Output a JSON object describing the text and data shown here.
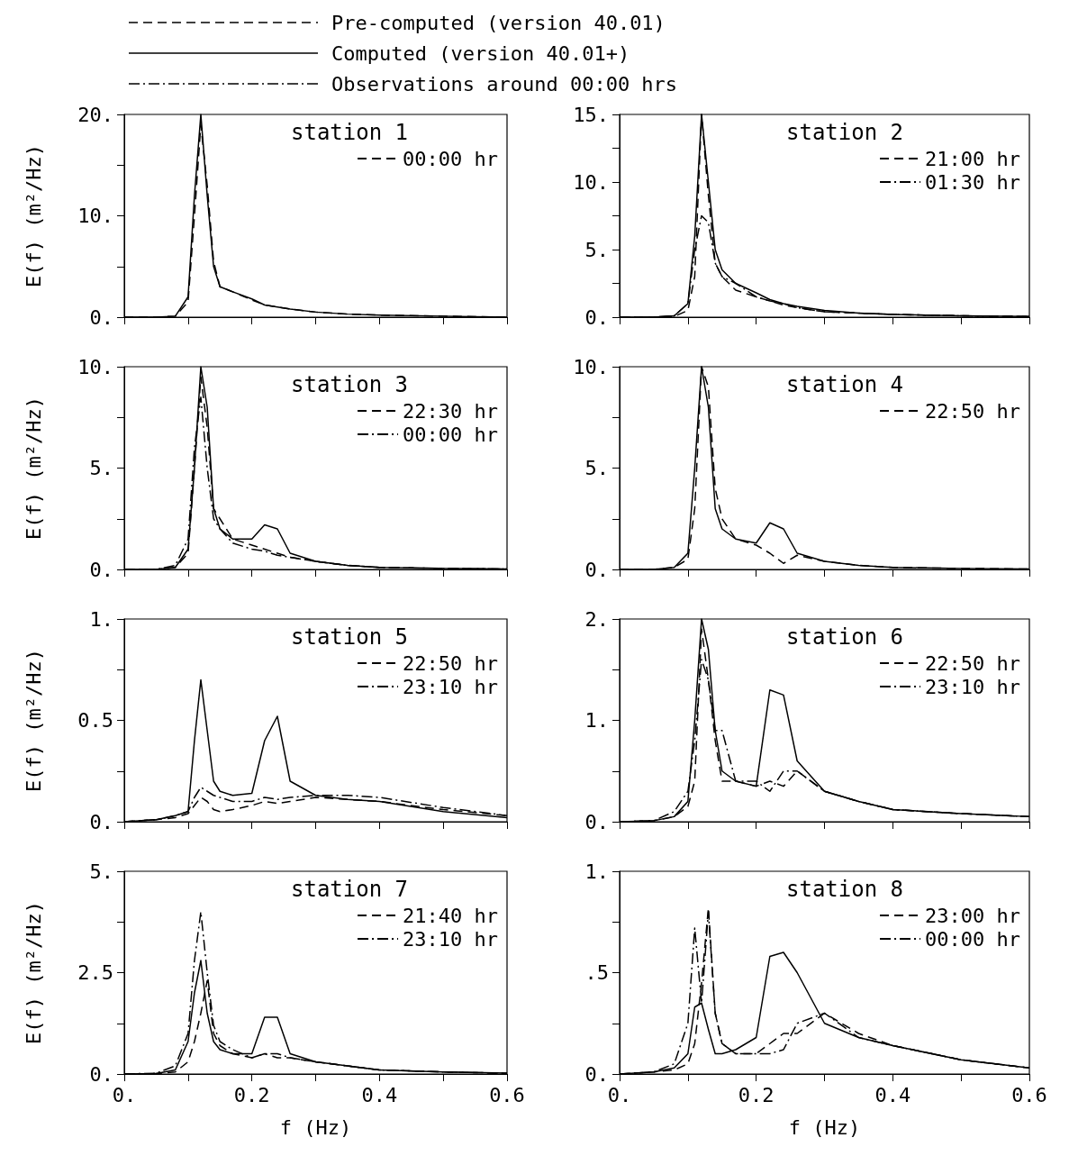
{
  "chart_data": [
    {
      "type": "other",
      "series": [
        {
          "name": "Pre-computed (version 40.01)",
          "color": "#000000",
          "line_style": "dashed"
        },
        {
          "name": "Computed (version 40.01+)",
          "color": "#000000",
          "line_style": "solid"
        },
        {
          "name": "Observations around 00:00 hrs",
          "color": "#000000",
          "line_style": "dashdot"
        }
      ]
    },
    {
      "type": "line",
      "title": "station 1",
      "ylabel": "E(f) (m²/Hz)",
      "tick_labels": "y",
      "legend": "top right",
      "xlim": [
        0,
        0.6
      ],
      "xticks": [
        {
          "value": 0,
          "label": null
        },
        {
          "value": 0.1,
          "label": null
        },
        {
          "value": 0.2,
          "label": null
        },
        {
          "value": 0.3,
          "label": null
        },
        {
          "value": 0.4,
          "label": null
        },
        {
          "value": 0.5,
          "label": null
        },
        {
          "value": 0.6,
          "label": null
        }
      ],
      "ylim": [
        0,
        20
      ],
      "yticks": [
        {
          "value": 0,
          "label": "0."
        },
        {
          "value": 5,
          "label": null
        },
        {
          "value": 10,
          "label": "10."
        },
        {
          "value": 15,
          "label": null
        },
        {
          "value": 20,
          "label": "20."
        }
      ],
      "x": [
        0,
        0.05,
        0.08,
        0.1,
        0.11,
        0.12,
        0.13,
        0.14,
        0.15,
        0.17,
        0.2,
        0.22,
        0.24,
        0.26,
        0.3,
        0.35,
        0.4,
        0.5,
        0.6
      ],
      "series": [
        {
          "color": "#000000",
          "line_style": "solid",
          "values": [
            0,
            0,
            0.1,
            2,
            12,
            20,
            12,
            5,
            3,
            2.5,
            1.8,
            1.2,
            1,
            0.8,
            0.5,
            0.3,
            0.2,
            0.1,
            0
          ]
        },
        {
          "name": "00:00 hr",
          "color": "#000000",
          "line_style": "dashed",
          "values": [
            0,
            0,
            0.1,
            1.5,
            10,
            19,
            13,
            5.5,
            3,
            2.5,
            1.7,
            1.2,
            1,
            0.8,
            0.5,
            0.3,
            0.2,
            0.1,
            0
          ]
        }
      ]
    },
    {
      "type": "line",
      "title": "station 2",
      "tick_labels": "y",
      "legend": "top right",
      "xlim": [
        0,
        0.6
      ],
      "xticks": [
        {
          "value": 0,
          "label": null
        },
        {
          "value": 0.1,
          "label": null
        },
        {
          "value": 0.2,
          "label": null
        },
        {
          "value": 0.3,
          "label": null
        },
        {
          "value": 0.4,
          "label": null
        },
        {
          "value": 0.5,
          "label": null
        },
        {
          "value": 0.6,
          "label": null
        }
      ],
      "ylim": [
        0,
        15
      ],
      "yticks": [
        {
          "value": 0,
          "label": "0."
        },
        {
          "value": 2.5,
          "label": null
        },
        {
          "value": 5,
          "label": "5."
        },
        {
          "value": 7.5,
          "label": null
        },
        {
          "value": 10,
          "label": "10."
        },
        {
          "value": 12.5,
          "label": null
        },
        {
          "value": 15,
          "label": "15."
        }
      ],
      "x": [
        0,
        0.05,
        0.08,
        0.1,
        0.11,
        0.12,
        0.13,
        0.14,
        0.15,
        0.17,
        0.2,
        0.22,
        0.24,
        0.26,
        0.3,
        0.35,
        0.4,
        0.5,
        0.6
      ],
      "series": [
        {
          "color": "#000000",
          "line_style": "solid",
          "values": [
            0,
            0,
            0.1,
            1,
            6,
            15,
            10,
            5,
            3.5,
            2.5,
            1.8,
            1.3,
            1,
            0.8,
            0.5,
            0.3,
            0.2,
            0.1,
            0.05
          ]
        },
        {
          "name": "21:00 hr",
          "color": "#000000",
          "line_style": "dashed",
          "values": [
            0,
            0,
            0.05,
            0.5,
            3,
            15,
            9,
            4,
            3,
            2,
            1.5,
            1.2,
            0.9,
            0.7,
            0.4,
            0.3,
            0.2,
            0.1,
            0.05
          ]
        },
        {
          "name": "01:30 hr",
          "color": "#000000",
          "line_style": "dashdot",
          "values": [
            0,
            0,
            0.1,
            1,
            5,
            7.5,
            7,
            4,
            3,
            2.5,
            1.5,
            1.2,
            1,
            0.7,
            0.4,
            0.3,
            0.2,
            0.1,
            0.05
          ]
        }
      ]
    },
    {
      "type": "line",
      "title": "station 3",
      "ylabel": "E(f) (m²/Hz)",
      "tick_labels": "y",
      "legend": "top right",
      "xlim": [
        0,
        0.6
      ],
      "xticks": [
        {
          "value": 0,
          "label": null
        },
        {
          "value": 0.1,
          "label": null
        },
        {
          "value": 0.2,
          "label": null
        },
        {
          "value": 0.3,
          "label": null
        },
        {
          "value": 0.4,
          "label": null
        },
        {
          "value": 0.5,
          "label": null
        },
        {
          "value": 0.6,
          "label": null
        }
      ],
      "ylim": [
        0,
        10
      ],
      "yticks": [
        {
          "value": 0,
          "label": "0."
        },
        {
          "value": 2.5,
          "label": null
        },
        {
          "value": 5,
          "label": "5."
        },
        {
          "value": 7.5,
          "label": null
        },
        {
          "value": 10,
          "label": "10."
        }
      ],
      "x": [
        0,
        0.05,
        0.08,
        0.1,
        0.11,
        0.12,
        0.13,
        0.14,
        0.15,
        0.17,
        0.2,
        0.22,
        0.24,
        0.26,
        0.3,
        0.35,
        0.4,
        0.5,
        0.6
      ],
      "series": [
        {
          "color": "#000000",
          "line_style": "solid",
          "values": [
            0,
            0,
            0.1,
            1,
            5,
            10,
            8,
            3,
            2,
            1.5,
            1.5,
            2.2,
            2,
            0.8,
            0.4,
            0.2,
            0.1,
            0.05,
            0.02
          ]
        },
        {
          "name": "22:30 hr",
          "color": "#000000",
          "line_style": "dashed",
          "values": [
            0,
            0,
            0.1,
            0.8,
            5,
            9.5,
            7,
            3,
            2.5,
            1.5,
            1.2,
            1,
            0.8,
            0.6,
            0.4,
            0.2,
            0.1,
            0.05,
            0.02
          ]
        },
        {
          "name": "00:00 hr",
          "color": "#000000",
          "line_style": "dashdot",
          "values": [
            0,
            0,
            0.2,
            1.5,
            6,
            8.5,
            5,
            2.5,
            2,
            1.3,
            1,
            0.9,
            0.7,
            0.6,
            0.4,
            0.2,
            0.1,
            0.05,
            0.02
          ]
        }
      ]
    },
    {
      "type": "line",
      "title": "station 4",
      "tick_labels": "y",
      "legend": "top right",
      "xlim": [
        0,
        0.6
      ],
      "xticks": [
        {
          "value": 0,
          "label": null
        },
        {
          "value": 0.1,
          "label": null
        },
        {
          "value": 0.2,
          "label": null
        },
        {
          "value": 0.3,
          "label": null
        },
        {
          "value": 0.4,
          "label": null
        },
        {
          "value": 0.5,
          "label": null
        },
        {
          "value": 0.6,
          "label": null
        }
      ],
      "ylim": [
        0,
        10
      ],
      "yticks": [
        {
          "value": 0,
          "label": "0."
        },
        {
          "value": 2.5,
          "label": null
        },
        {
          "value": 5,
          "label": "5."
        },
        {
          "value": 7.5,
          "label": null
        },
        {
          "value": 10,
          "label": "10."
        }
      ],
      "x": [
        0,
        0.05,
        0.08,
        0.1,
        0.11,
        0.12,
        0.13,
        0.14,
        0.15,
        0.17,
        0.2,
        0.22,
        0.24,
        0.26,
        0.3,
        0.35,
        0.4,
        0.5,
        0.6
      ],
      "series": [
        {
          "color": "#000000",
          "line_style": "solid",
          "values": [
            0,
            0,
            0.1,
            0.8,
            5,
            10,
            8,
            3,
            2,
            1.5,
            1.3,
            2.3,
            2,
            0.8,
            0.4,
            0.2,
            0.1,
            0.05,
            0.02
          ]
        },
        {
          "name": "22:50 hr",
          "color": "#000000",
          "line_style": "dashed",
          "values": [
            0,
            0,
            0.1,
            0.5,
            3,
            10,
            9,
            4,
            2.5,
            1.5,
            1.2,
            0.8,
            0.3,
            0.7,
            0.4,
            0.2,
            0.1,
            0.05,
            0.02
          ]
        }
      ]
    },
    {
      "type": "line",
      "title": "station 5",
      "ylabel": "E(f) (m²/Hz)",
      "tick_labels": "y",
      "legend": "top right",
      "xlim": [
        0,
        0.6
      ],
      "xticks": [
        {
          "value": 0,
          "label": null
        },
        {
          "value": 0.1,
          "label": null
        },
        {
          "value": 0.2,
          "label": null
        },
        {
          "value": 0.3,
          "label": null
        },
        {
          "value": 0.4,
          "label": null
        },
        {
          "value": 0.5,
          "label": null
        },
        {
          "value": 0.6,
          "label": null
        }
      ],
      "ylim": [
        0,
        1
      ],
      "yticks": [
        {
          "value": 0,
          "label": "0."
        },
        {
          "value": 0.25,
          "label": null
        },
        {
          "value": 0.5,
          "label": "0.5"
        },
        {
          "value": 0.75,
          "label": null
        },
        {
          "value": 1,
          "label": "1."
        }
      ],
      "x": [
        0,
        0.05,
        0.08,
        0.1,
        0.11,
        0.12,
        0.13,
        0.14,
        0.15,
        0.17,
        0.2,
        0.22,
        0.24,
        0.26,
        0.3,
        0.35,
        0.4,
        0.5,
        0.6
      ],
      "series": [
        {
          "color": "#000000",
          "line_style": "solid",
          "values": [
            0,
            0.01,
            0.03,
            0.05,
            0.4,
            0.7,
            0.45,
            0.2,
            0.15,
            0.13,
            0.14,
            0.4,
            0.52,
            0.2,
            0.13,
            0.11,
            0.1,
            0.05,
            0.02
          ]
        },
        {
          "name": "22:50 hr",
          "color": "#000000",
          "line_style": "dashed",
          "values": [
            0,
            0.01,
            0.02,
            0.04,
            0.08,
            0.12,
            0.1,
            0.06,
            0.05,
            0.06,
            0.08,
            0.1,
            0.09,
            0.1,
            0.12,
            0.11,
            0.1,
            0.06,
            0.03
          ]
        },
        {
          "name": "23:10 hr",
          "color": "#000000",
          "line_style": "dashdot",
          "values": [
            0,
            0.01,
            0.03,
            0.05,
            0.12,
            0.17,
            0.15,
            0.13,
            0.12,
            0.1,
            0.1,
            0.12,
            0.11,
            0.12,
            0.13,
            0.13,
            0.12,
            0.07,
            0.03
          ]
        }
      ]
    },
    {
      "type": "line",
      "title": "station 6",
      "tick_labels": "y",
      "legend": "top right",
      "xlim": [
        0,
        0.6
      ],
      "xticks": [
        {
          "value": 0,
          "label": null
        },
        {
          "value": 0.1,
          "label": null
        },
        {
          "value": 0.2,
          "label": null
        },
        {
          "value": 0.3,
          "label": null
        },
        {
          "value": 0.4,
          "label": null
        },
        {
          "value": 0.5,
          "label": null
        },
        {
          "value": 0.6,
          "label": null
        }
      ],
      "ylim": [
        0,
        2
      ],
      "yticks": [
        {
          "value": 0,
          "label": "0."
        },
        {
          "value": 0.5,
          "label": null
        },
        {
          "value": 1,
          "label": "1."
        },
        {
          "value": 1.5,
          "label": null
        },
        {
          "value": 2,
          "label": "2."
        }
      ],
      "x": [
        0,
        0.05,
        0.08,
        0.1,
        0.11,
        0.12,
        0.13,
        0.14,
        0.15,
        0.17,
        0.2,
        0.22,
        0.24,
        0.26,
        0.3,
        0.35,
        0.4,
        0.5,
        0.6
      ],
      "series": [
        {
          "color": "#000000",
          "line_style": "solid",
          "values": [
            0,
            0.01,
            0.05,
            0.2,
            1,
            2,
            1.7,
            0.9,
            0.5,
            0.4,
            0.35,
            1.3,
            1.25,
            0.6,
            0.3,
            0.2,
            0.12,
            0.08,
            0.05
          ]
        },
        {
          "name": "22:50 hr",
          "color": "#000000",
          "line_style": "dashed",
          "values": [
            0,
            0.01,
            0.05,
            0.15,
            0.4,
            1.9,
            1.4,
            0.8,
            0.4,
            0.4,
            0.35,
            0.4,
            0.35,
            0.5,
            0.3,
            0.2,
            0.12,
            0.08,
            0.05
          ]
        },
        {
          "name": "23:10 hr",
          "color": "#000000",
          "line_style": "dashdot",
          "values": [
            0,
            0.01,
            0.1,
            0.3,
            0.8,
            1.6,
            1.4,
            0.9,
            0.9,
            0.4,
            0.4,
            0.3,
            0.5,
            0.5,
            0.3,
            0.2,
            0.12,
            0.08,
            0.05
          ]
        }
      ]
    },
    {
      "type": "line",
      "title": "station 7",
      "ylabel": "E(f) (m²/Hz)",
      "xlabel": "f (Hz)",
      "legend": "top right",
      "xlim": [
        0,
        0.6
      ],
      "xticks": [
        {
          "value": 0,
          "label": "0."
        },
        {
          "value": 0.1,
          "label": null
        },
        {
          "value": 0.2,
          "label": "0.2"
        },
        {
          "value": 0.3,
          "label": null
        },
        {
          "value": 0.4,
          "label": "0.4"
        },
        {
          "value": 0.5,
          "label": null
        },
        {
          "value": 0.6,
          "label": "0.6"
        }
      ],
      "ylim": [
        0,
        5
      ],
      "yticks": [
        {
          "value": 0,
          "label": "0."
        },
        {
          "value": 1.25,
          "label": null
        },
        {
          "value": 2.5,
          "label": "2.5"
        },
        {
          "value": 3.75,
          "label": null
        },
        {
          "value": 5,
          "label": "5."
        }
      ],
      "x": [
        0,
        0.05,
        0.08,
        0.1,
        0.11,
        0.12,
        0.13,
        0.14,
        0.15,
        0.17,
        0.2,
        0.22,
        0.24,
        0.26,
        0.3,
        0.35,
        0.4,
        0.5,
        0.6
      ],
      "series": [
        {
          "color": "#000000",
          "line_style": "solid",
          "values": [
            0,
            0.01,
            0.1,
            0.8,
            2,
            2.8,
            1.5,
            0.8,
            0.6,
            0.5,
            0.5,
            1.4,
            1.4,
            0.5,
            0.3,
            0.2,
            0.1,
            0.05,
            0.02
          ]
        },
        {
          "name": "21:40 hr",
          "color": "#000000",
          "line_style": "dashed",
          "values": [
            0,
            0.01,
            0.05,
            0.3,
            0.8,
            1.5,
            2.3,
            1,
            0.7,
            0.5,
            0.4,
            0.5,
            0.4,
            0.4,
            0.3,
            0.2,
            0.1,
            0.05,
            0.02
          ]
        },
        {
          "name": "23:10 hr",
          "color": "#000000",
          "line_style": "dashdot",
          "values": [
            0,
            0.02,
            0.2,
            1,
            2.8,
            4,
            2.5,
            1.2,
            0.8,
            0.6,
            0.4,
            0.5,
            0.5,
            0.4,
            0.3,
            0.2,
            0.1,
            0.05,
            0.02
          ]
        }
      ]
    },
    {
      "type": "line",
      "title": "station 8",
      "xlabel": "f (Hz)",
      "legend": "top right",
      "xlim": [
        0,
        0.6
      ],
      "xticks": [
        {
          "value": 0,
          "label": "0."
        },
        {
          "value": 0.1,
          "label": null
        },
        {
          "value": 0.2,
          "label": "0.2"
        },
        {
          "value": 0.3,
          "label": null
        },
        {
          "value": 0.4,
          "label": "0.4"
        },
        {
          "value": 0.5,
          "label": null
        },
        {
          "value": 0.6,
          "label": "0.6"
        }
      ],
      "ylim": [
        0,
        1
      ],
      "yticks": [
        {
          "value": 0,
          "label": "0."
        },
        {
          "value": 0.25,
          "label": null
        },
        {
          "value": 0.5,
          "label": ".5"
        },
        {
          "value": 0.75,
          "label": null
        },
        {
          "value": 1,
          "label": "1."
        }
      ],
      "x": [
        0,
        0.05,
        0.08,
        0.1,
        0.11,
        0.12,
        0.13,
        0.14,
        0.15,
        0.17,
        0.2,
        0.22,
        0.24,
        0.26,
        0.3,
        0.35,
        0.4,
        0.5,
        0.6
      ],
      "series": [
        {
          "color": "#000000",
          "line_style": "solid",
          "values": [
            0,
            0.01,
            0.03,
            0.1,
            0.33,
            0.35,
            0.22,
            0.1,
            0.1,
            0.12,
            0.18,
            0.58,
            0.6,
            0.5,
            0.25,
            0.18,
            0.14,
            0.07,
            0.03
          ]
        },
        {
          "name": "23:00 hr",
          "color": "#000000",
          "line_style": "dashed",
          "values": [
            0,
            0.01,
            0.02,
            0.05,
            0.15,
            0.45,
            0.82,
            0.3,
            0.15,
            0.1,
            0.1,
            0.15,
            0.2,
            0.2,
            0.3,
            0.2,
            0.14,
            0.07,
            0.03
          ]
        },
        {
          "name": "00:00 hr",
          "color": "#000000",
          "line_style": "dashdot",
          "values": [
            0,
            0.01,
            0.05,
            0.25,
            0.72,
            0.35,
            0.8,
            0.3,
            0.15,
            0.1,
            0.1,
            0.1,
            0.12,
            0.25,
            0.3,
            0.18,
            0.14,
            0.07,
            0.03
          ]
        }
      ]
    }
  ]
}
